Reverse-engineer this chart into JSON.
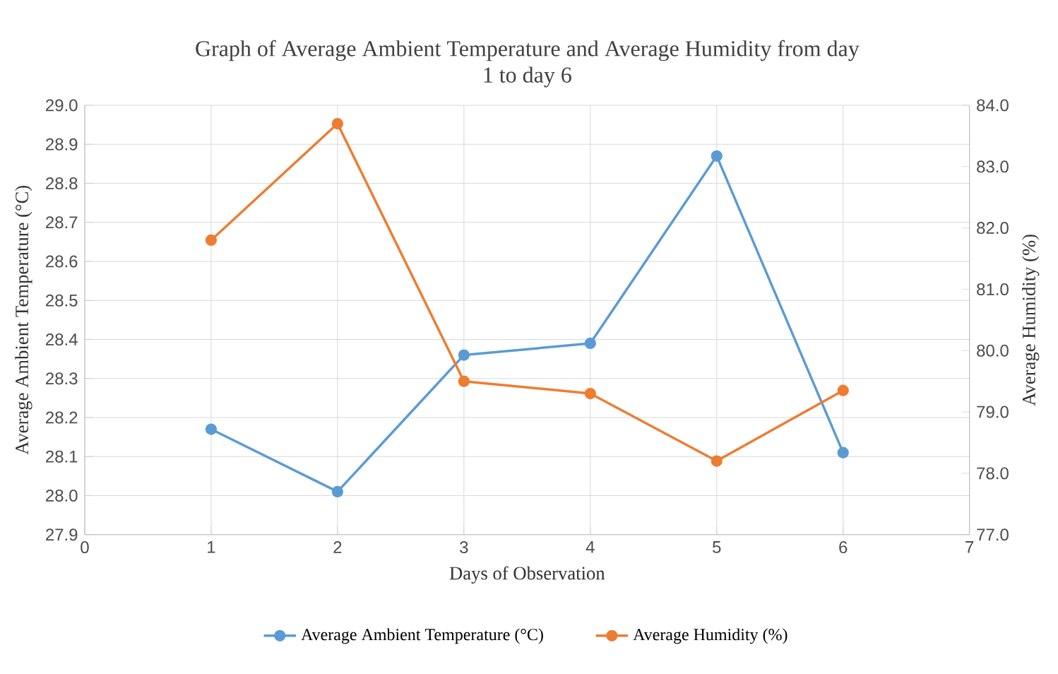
{
  "chart_data": {
    "type": "line",
    "title": "Graph of Average Ambient Temperature and Average Humidity from day 1 to day 6",
    "xlabel": "Days of Observation",
    "ylabel": "Average Ambient Temperature (°C)",
    "y2label": "Average Humidity (%)",
    "x": [
      1,
      2,
      3,
      4,
      5,
      6
    ],
    "series": [
      {
        "name": "Average Ambient Temperature (°C)",
        "color": "#5b9bd5",
        "values": [
          28.17,
          28.01,
          28.36,
          28.39,
          28.87,
          28.11
        ]
      },
      {
        "name": "Average Humidity (%)",
        "color": "#ed7d31",
        "axis": "y2",
        "values": [
          81.8,
          83.7,
          79.5,
          79.3,
          78.2,
          79.35
        ]
      }
    ],
    "xlim": [
      0,
      7
    ],
    "xticks": [
      0,
      1,
      2,
      3,
      4,
      5,
      6,
      7
    ],
    "ylim": [
      27.9,
      29.0
    ],
    "yticks": [
      {
        "value": 27.9,
        "label": "27.9"
      },
      {
        "value": 28.0,
        "label": "28.0"
      },
      {
        "value": 28.1,
        "label": "28.1"
      },
      {
        "value": 28.2,
        "label": "28.2"
      },
      {
        "value": 28.3,
        "label": "28.3"
      },
      {
        "value": 28.4,
        "label": "28.4"
      },
      {
        "value": 28.5,
        "label": "28.5"
      },
      {
        "value": 28.6,
        "label": "28.6"
      },
      {
        "value": 28.7,
        "label": "28.7"
      },
      {
        "value": 28.8,
        "label": "28.8"
      },
      {
        "value": 28.9,
        "label": "28.9"
      },
      {
        "value": 29.0,
        "label": "29.0"
      }
    ],
    "y2lim": [
      77.0,
      84.0
    ],
    "y2ticks": [
      {
        "value": 77,
        "label": "77.0"
      },
      {
        "value": 78,
        "label": "78.0"
      },
      {
        "value": 79,
        "label": "79.0"
      },
      {
        "value": 80,
        "label": "80.0"
      },
      {
        "value": 81,
        "label": "81.0"
      },
      {
        "value": 82,
        "label": "82.0"
      },
      {
        "value": 83,
        "label": "83.0"
      },
      {
        "value": 84,
        "label": "84.0"
      }
    ],
    "grid": true,
    "legend": "bottom",
    "marker": "circle",
    "line_style": "solid"
  }
}
